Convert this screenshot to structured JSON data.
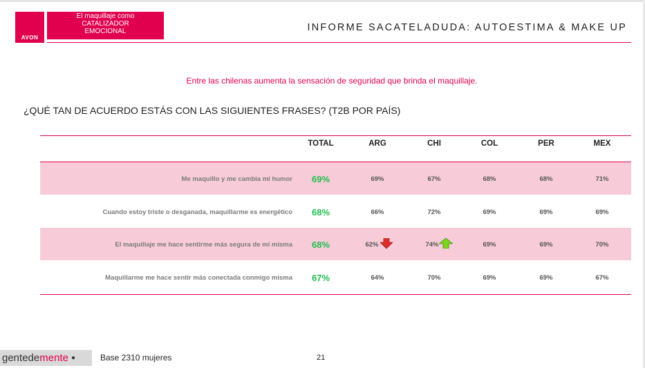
{
  "header": {
    "logo_text": "AVON",
    "theme_lines": [
      "El maquillaje como",
      "CATALIZADOR",
      "EMOCIONAL"
    ],
    "report_title": "INFORME SACATELADUDA: AUTOESTIMA  & MAKE UP"
  },
  "headline": "Entre las chilenas aumenta la sensación de seguridad que brinda el maquillaje.",
  "question": "¿QUÉ TAN DE ACUERDO ESTÁS CON LAS SIGUIENTES FRASES? (T2B POR PAÍS)",
  "table": {
    "columns": [
      "TOTAL",
      "ARG",
      "CHI",
      "COL",
      "PER",
      "MEX"
    ],
    "rows": [
      {
        "label": "Me maquillo y me cambia mi humor",
        "values": [
          "69%",
          "69%",
          "67%",
          "68%",
          "68%",
          "71%"
        ]
      },
      {
        "label": "Cuando estoy triste o desganada, maquillarme es energético",
        "values": [
          "68%",
          "66%",
          "72%",
          "69%",
          "69%",
          "69%"
        ]
      },
      {
        "label": "El maquillaje me hace sentirme más segura de mí misma",
        "values": [
          "68%",
          "62%",
          "74%",
          "69%",
          "69%",
          "70%"
        ]
      },
      {
        "label": "Maquillarme me hace sentir más conectada conmigo misma",
        "values": [
          "67%",
          "64%",
          "70%",
          "69%",
          "69%",
          "67%"
        ]
      }
    ],
    "indicators": {
      "arg_down": "arrow-down-icon",
      "chi_up": "arrow-up-icon"
    },
    "colors": {
      "accent": "#e0004d",
      "band": "#f7ccd8",
      "total": "#1fbe4f",
      "down": "#d9302c",
      "up": "#7ed321"
    }
  },
  "footer": {
    "brand_main": "gentede",
    "brand_accent": "mente",
    "brand_dot": "●",
    "base": "Base 2310 mujeres",
    "page": "21"
  }
}
